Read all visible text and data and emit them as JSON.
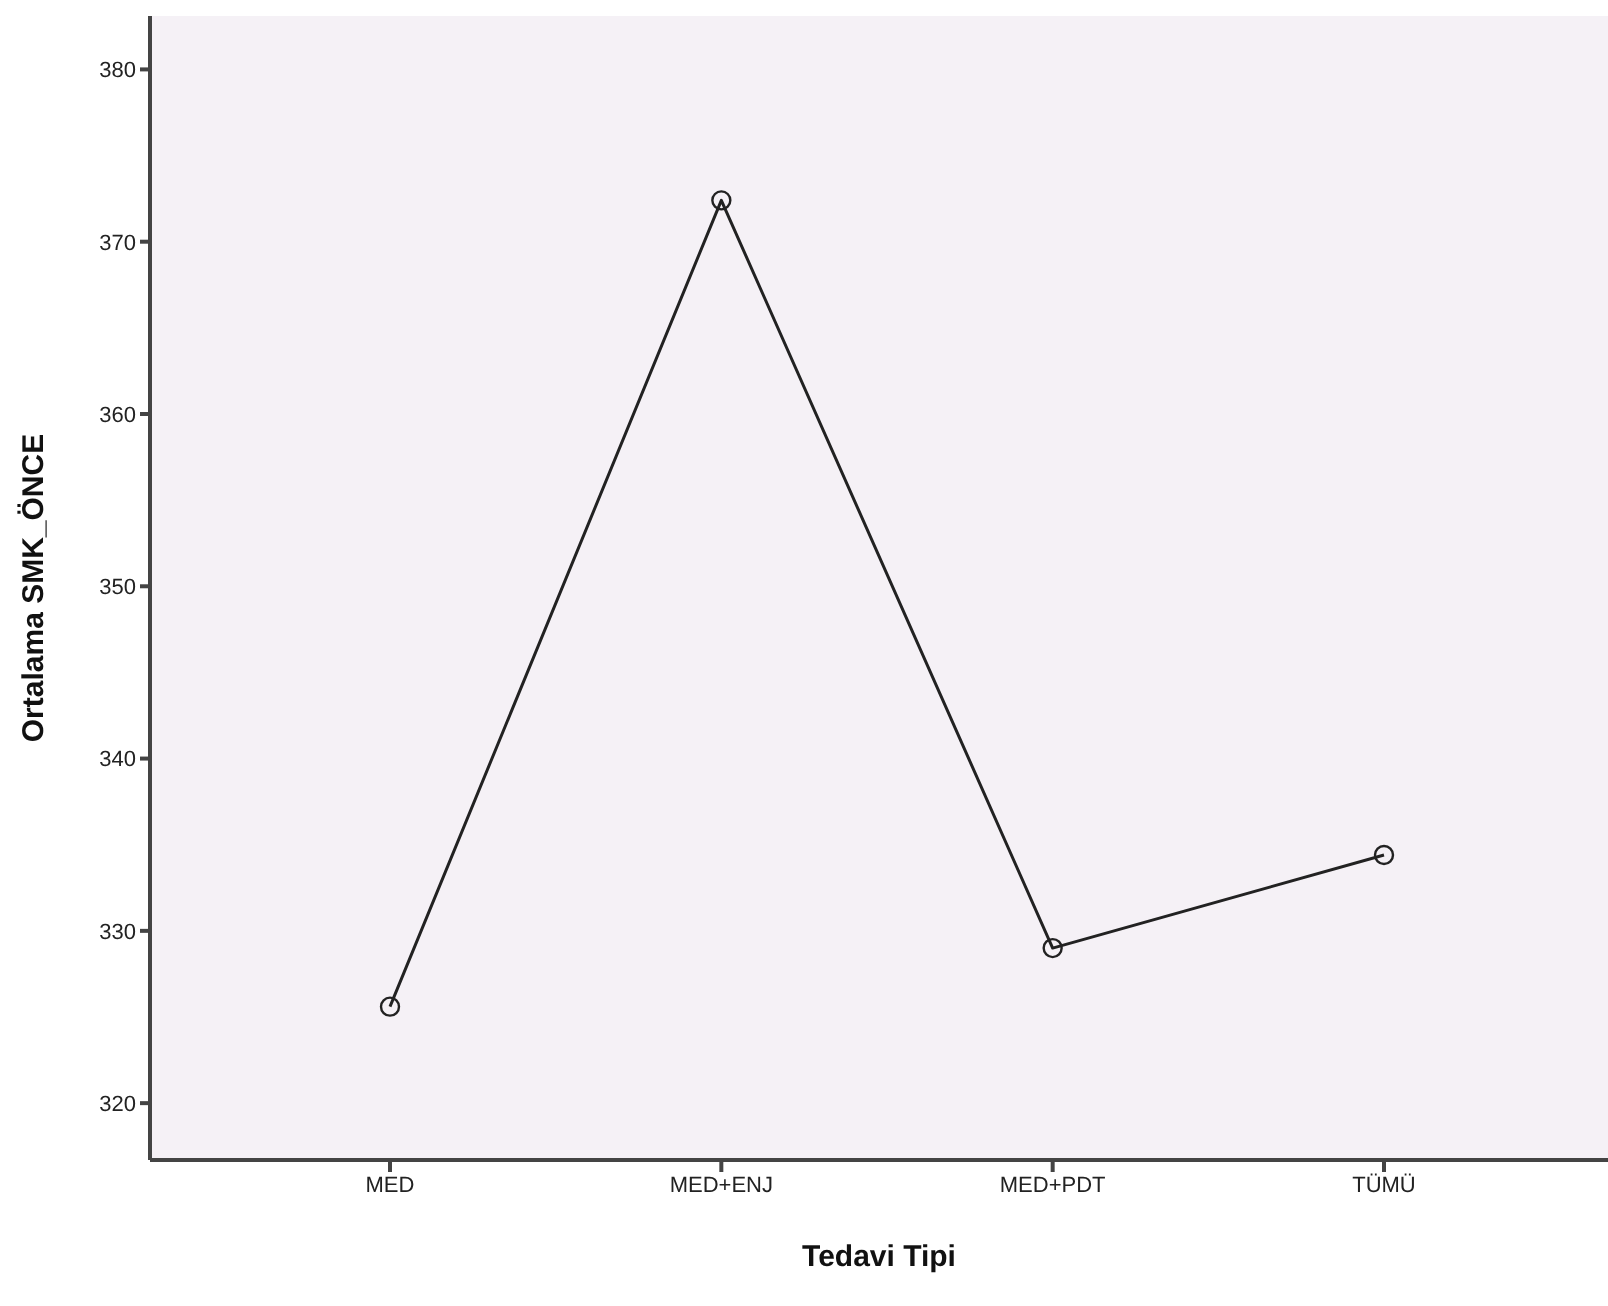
{
  "chart_data": {
    "type": "line",
    "xlabel": "Tedavi Tipi",
    "ylabel": "Ortalama SMK_ÖNCE",
    "categories": [
      "MED",
      "MED+ENJ",
      "MED+PDT",
      "TÜMÜ"
    ],
    "series": [
      {
        "color": "#222222",
        "values": [
          325.6,
          372.4,
          329.0,
          334.4
        ]
      }
    ],
    "ylim": [
      316.7,
      383.1
    ],
    "yticks": [
      320,
      330,
      340,
      350,
      360,
      370,
      380
    ],
    "marker": "circle",
    "line_style": "solid",
    "grid": false,
    "legend": false
  }
}
